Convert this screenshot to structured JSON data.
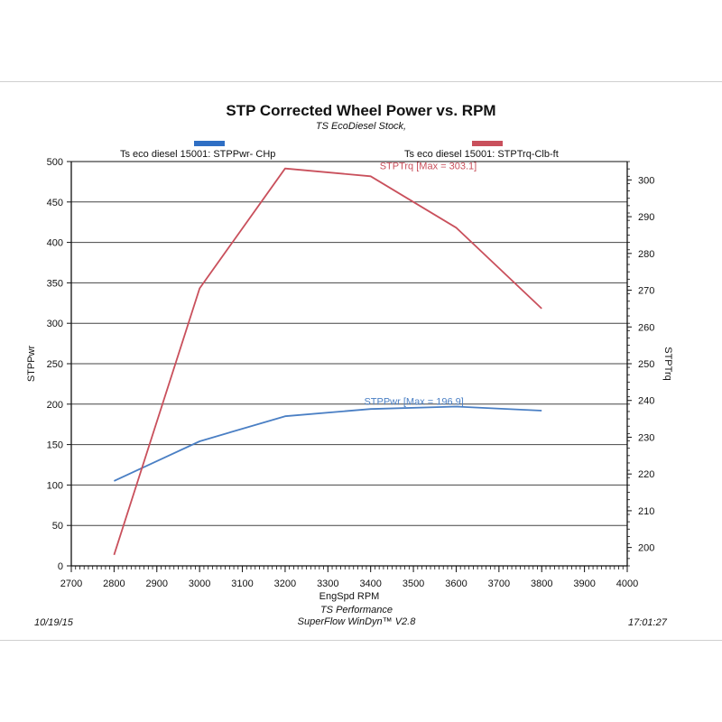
{
  "chart_data": {
    "type": "line",
    "title": "STP Corrected Wheel Power vs. RPM",
    "subtitle": "TS EcoDiesel Stock,",
    "xlabel": "EngSpd  RPM",
    "ylabel_left": "STPPwr",
    "ylabel_right": "STPTrq",
    "xlim": [
      2700,
      4000
    ],
    "ylim_left": [
      0,
      500
    ],
    "ylim_right": [
      195,
      305
    ],
    "x_ticks": [
      2700,
      2800,
      2900,
      3000,
      3100,
      3200,
      3300,
      3400,
      3500,
      3600,
      3700,
      3800,
      3900,
      4000
    ],
    "y_ticks_left": [
      0,
      50,
      100,
      150,
      200,
      250,
      300,
      350,
      400,
      450,
      500
    ],
    "y_ticks_right": [
      200,
      210,
      220,
      230,
      240,
      250,
      260,
      270,
      280,
      290,
      300
    ],
    "grid": true,
    "series": [
      {
        "name": "Ts eco diesel 15001: STPPwr- CHp",
        "axis": "left",
        "color": "#4a7fc4",
        "x": [
          2800,
          3000,
          3200,
          3400,
          3600,
          3800
        ],
        "y": [
          105,
          154,
          185,
          194,
          197,
          192
        ],
        "annotation": "STPPwr [Max = 196.9]"
      },
      {
        "name": "Ts eco diesel 15001: STPTrq-Clb-ft",
        "axis": "right",
        "color": "#c9505c",
        "x": [
          2800,
          3000,
          3200,
          3400,
          3600,
          3800
        ],
        "y": [
          198,
          270.5,
          303.1,
          301,
          287,
          265
        ],
        "annotation": "STPTrq [Max = 303.1]"
      }
    ]
  },
  "legend": {
    "pwr_label": "Ts eco diesel 15001: STPPwr- CHp",
    "trq_label": "Ts eco diesel 15001: STPTrq-Clb-ft",
    "pwr_color": "#2f6fc4",
    "trq_color": "#c9505c"
  },
  "footer": {
    "date": "10/19/15",
    "company": "TS Performance",
    "software": "SuperFlow WinDyn™ V2.8",
    "time": "17:01:27"
  }
}
